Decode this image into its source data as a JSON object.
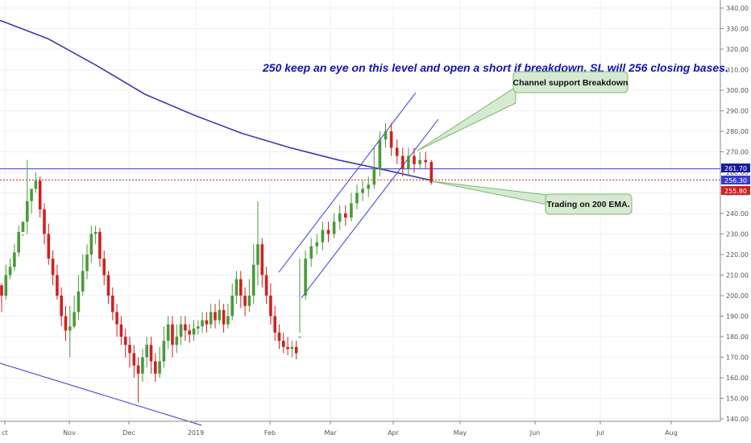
{
  "chart_data": {
    "type": "candlestick",
    "title": "",
    "xlabel": "",
    "ylabel": "",
    "ylim": [
      136,
      342
    ],
    "grid": true,
    "y_ticks": [
      "140.00",
      "150.00",
      "160.00",
      "170.00",
      "180.00",
      "190.00",
      "200.00",
      "210.00",
      "220.00",
      "230.00",
      "240.00",
      "250.00",
      "260.00",
      "270.00",
      "280.00",
      "290.00",
      "300.00",
      "310.00",
      "320.00",
      "330.00",
      "340.00"
    ],
    "x_ticks": [
      "ct",
      "Nov",
      "Dec",
      "2019",
      "Feb",
      "Mar",
      "Apr",
      "May",
      "Jun",
      "Jul",
      "Aug"
    ],
    "colors": {
      "up": "#4a9a3a",
      "down": "#d02020",
      "ema": "#3f3aa8",
      "lines": "#3a3ad0",
      "support": "#d02020"
    },
    "candles": [
      [
        205,
        200,
        206,
        192
      ],
      [
        200,
        210,
        215,
        198
      ],
      [
        210,
        214,
        218,
        208
      ],
      [
        214,
        221,
        225,
        212
      ],
      [
        221,
        231,
        234,
        219
      ],
      [
        231,
        236,
        230,
        229
      ],
      [
        236,
        246,
        266,
        230
      ],
      [
        246,
        252,
        252,
        240
      ],
      [
        252,
        256,
        260,
        250
      ],
      [
        256,
        242,
        258,
        238
      ],
      [
        242,
        230,
        245,
        225
      ],
      [
        230,
        218,
        235,
        215
      ],
      [
        218,
        210,
        222,
        205
      ],
      [
        210,
        200,
        215,
        198
      ],
      [
        200,
        190,
        204,
        185
      ],
      [
        190,
        183,
        195,
        178
      ],
      [
        183,
        185,
        195,
        170
      ],
      [
        185,
        192,
        200,
        184
      ],
      [
        192,
        202,
        210,
        188
      ],
      [
        202,
        212,
        220,
        200
      ],
      [
        212,
        220,
        225,
        208
      ],
      [
        220,
        230,
        234,
        216
      ],
      [
        230,
        231,
        234,
        225
      ],
      [
        231,
        218,
        233,
        214
      ],
      [
        218,
        210,
        222,
        205
      ],
      [
        210,
        200,
        212,
        196
      ],
      [
        200,
        192,
        204,
        188
      ],
      [
        192,
        186,
        196,
        180
      ],
      [
        186,
        180,
        190,
        176
      ],
      [
        180,
        176,
        184,
        170
      ],
      [
        176,
        172,
        180,
        165
      ],
      [
        172,
        166,
        176,
        160
      ],
      [
        166,
        162,
        170,
        148
      ],
      [
        162,
        170,
        174,
        158
      ],
      [
        170,
        176,
        180,
        165
      ],
      [
        176,
        168,
        180,
        162
      ],
      [
        168,
        162,
        172,
        158
      ],
      [
        162,
        168,
        175,
        160
      ],
      [
        168,
        178,
        185,
        165
      ],
      [
        178,
        186,
        190,
        174
      ],
      [
        186,
        176,
        190,
        170
      ],
      [
        176,
        180,
        186,
        172
      ],
      [
        180,
        186,
        190,
        176
      ],
      [
        186,
        183,
        190,
        178
      ],
      [
        183,
        181,
        186,
        177
      ],
      [
        181,
        184,
        188,
        178
      ],
      [
        184,
        185,
        188,
        181
      ],
      [
        185,
        188,
        192,
        182
      ],
      [
        188,
        186,
        192,
        182
      ],
      [
        186,
        192,
        196,
        184
      ],
      [
        192,
        188,
        196,
        184
      ],
      [
        188,
        193,
        198,
        186
      ],
      [
        193,
        186,
        196,
        182
      ],
      [
        186,
        190,
        196,
        184
      ],
      [
        190,
        200,
        206,
        188
      ],
      [
        200,
        208,
        212,
        196
      ],
      [
        208,
        200,
        212,
        194
      ],
      [
        200,
        195,
        204,
        190
      ],
      [
        195,
        200,
        208,
        192
      ],
      [
        200,
        215,
        225,
        196
      ],
      [
        215,
        225,
        246,
        205
      ],
      [
        225,
        210,
        228,
        204
      ],
      [
        210,
        200,
        214,
        196
      ],
      [
        200,
        190,
        206,
        186
      ],
      [
        190,
        182,
        195,
        178
      ],
      [
        182,
        178,
        186,
        174
      ],
      [
        178,
        175,
        182,
        172
      ],
      [
        175,
        174,
        180,
        171
      ],
      [
        174,
        175,
        178,
        170
      ],
      [
        175,
        172,
        178,
        169
      ],
      [
        180,
        180,
        218,
        182
      ],
      [
        200,
        218,
        222,
        198
      ],
      [
        218,
        224,
        228,
        214
      ],
      [
        224,
        226,
        230,
        220
      ],
      [
        226,
        232,
        236,
        222
      ],
      [
        232,
        230,
        236,
        226
      ],
      [
        230,
        236,
        240,
        228
      ],
      [
        236,
        240,
        244,
        232
      ],
      [
        240,
        238,
        244,
        234
      ],
      [
        238,
        245,
        250,
        236
      ],
      [
        245,
        250,
        254,
        242
      ],
      [
        250,
        252,
        256,
        246
      ],
      [
        252,
        254,
        258,
        248
      ],
      [
        254,
        262,
        272,
        252
      ],
      [
        262,
        276,
        280,
        258
      ],
      [
        276,
        280,
        284,
        272
      ],
      [
        280,
        272,
        284,
        268
      ],
      [
        272,
        268,
        276,
        264
      ],
      [
        268,
        262,
        272,
        258
      ],
      [
        262,
        268,
        272,
        258
      ],
      [
        268,
        264,
        272,
        260
      ],
      [
        264,
        266,
        270,
        262
      ],
      [
        266,
        265,
        270,
        262
      ],
      [
        265,
        255,
        266,
        254
      ]
    ],
    "ema200": [
      [
        0,
        334
      ],
      [
        60,
        325
      ],
      [
        120,
        312
      ],
      [
        180,
        298
      ],
      [
        240,
        288
      ],
      [
        300,
        279
      ],
      [
        360,
        272
      ],
      [
        420,
        266
      ],
      [
        480,
        261
      ],
      [
        536,
        256
      ]
    ],
    "horizontal_levels": [
      261.7,
      256.3
    ],
    "price_labels": [
      {
        "text": "261.70",
        "color": "#1a1aa0"
      },
      {
        "text": "256.30",
        "color": "#3a3ad0"
      },
      {
        "text": "255.80",
        "color": "#d02020"
      }
    ],
    "annotations": [
      {
        "text": "250 keep an eye on this level and open a short if breakdown. SL will 256 closing bases."
      },
      {
        "text": "Channel support Breakdown"
      },
      {
        "text": "Trading on 200 EMA."
      }
    ]
  }
}
